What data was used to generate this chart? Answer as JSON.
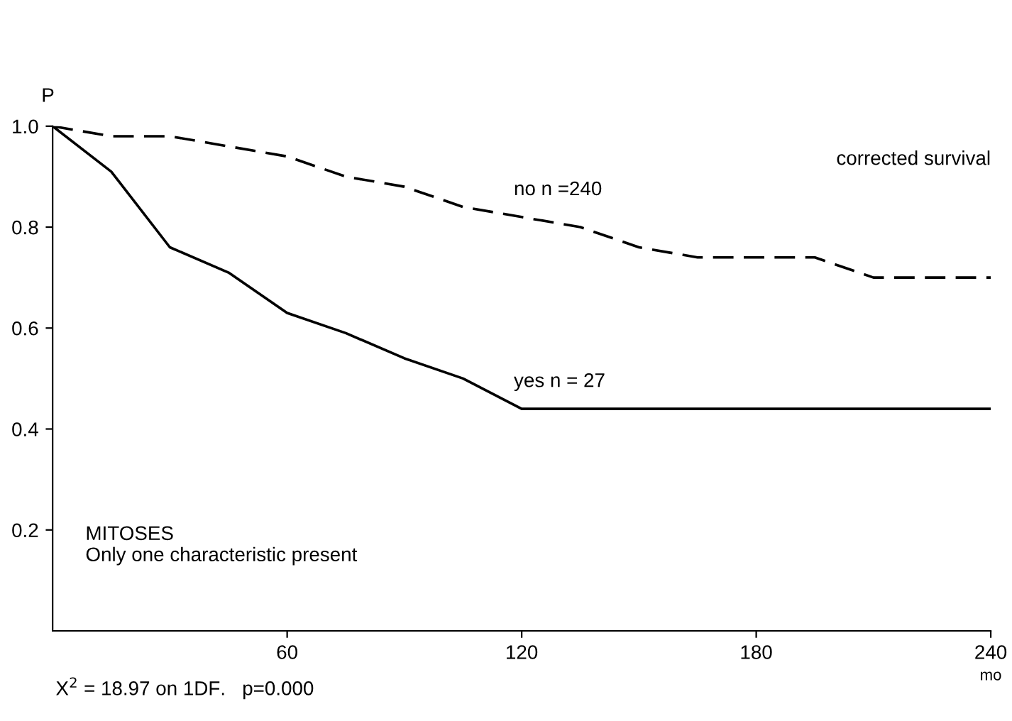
{
  "chart_data": {
    "type": "line",
    "title": "corrected survival",
    "xlabel": "mo",
    "ylabel": "P",
    "annotations": [
      "MITOSES\nOnly one characteristic present",
      "X$^{2}$ = 18.97 on 1DF.   p=0.000"
    ],
    "xlim": [
      0,
      240
    ],
    "ylim": [
      0,
      1.0
    ],
    "xticks": [
      60,
      120,
      180,
      240
    ],
    "yticks": [
      0.2,
      0.4,
      0.6,
      0.8,
      {
        "value": 1,
        "label": "1.0"
      }
    ],
    "grid": false,
    "legend": false,
    "marker": "none",
    "series": [
      {
        "name": "no n =240",
        "color": "#000000",
        "line_style": "dashed",
        "x": [
          0,
          15,
          30,
          45,
          60,
          75,
          90,
          105,
          120,
          135,
          150,
          165,
          195,
          210,
          240
        ],
        "values": [
          1.0,
          0.98,
          0.98,
          0.96,
          0.94,
          0.9,
          0.88,
          0.84,
          0.82,
          0.8,
          0.76,
          0.74,
          0.74,
          0.7,
          0.7
        ]
      },
      {
        "name": "yes n = 27",
        "color": "#000000",
        "line_style": "solid",
        "x": [
          0,
          15,
          30,
          45,
          60,
          75,
          90,
          105,
          120,
          240
        ],
        "values": [
          1.0,
          0.91,
          0.76,
          0.71,
          0.63,
          0.59,
          0.54,
          0.5,
          0.44,
          0.44
        ]
      }
    ]
  }
}
